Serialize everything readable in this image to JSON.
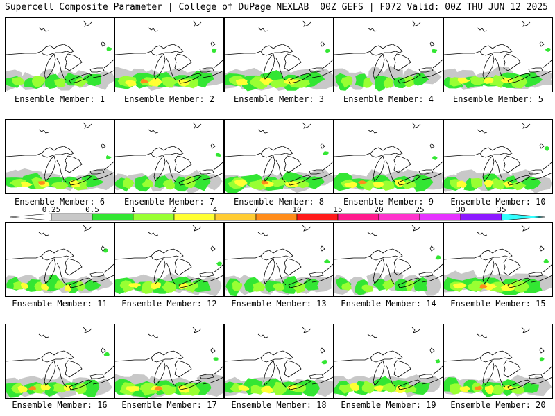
{
  "header": {
    "left": "Supercell Composite Parameter | College of DuPage NEXLAB",
    "right": "00Z GEFS | F072 Valid: 00Z THU JUN 12 2025"
  },
  "caption_prefix": "Ensemble Member: ",
  "members": [
    {
      "number": "1",
      "intensity": 2,
      "coverage": 0.55
    },
    {
      "number": "2",
      "intensity": 4,
      "coverage": 0.8
    },
    {
      "number": "3",
      "intensity": 3,
      "coverage": 0.9
    },
    {
      "number": "4",
      "intensity": 2,
      "coverage": 0.4
    },
    {
      "number": "5",
      "intensity": 3,
      "coverage": 0.75
    },
    {
      "number": "6",
      "intensity": 4,
      "coverage": 0.7
    },
    {
      "number": "7",
      "intensity": 2,
      "coverage": 0.45
    },
    {
      "number": "8",
      "intensity": 4,
      "coverage": 0.8
    },
    {
      "number": "9",
      "intensity": 4,
      "coverage": 0.7
    },
    {
      "number": "10",
      "intensity": 3,
      "coverage": 0.55
    },
    {
      "number": "11",
      "intensity": 3,
      "coverage": 0.4
    },
    {
      "number": "12",
      "intensity": 3,
      "coverage": 0.7
    },
    {
      "number": "13",
      "intensity": 2,
      "coverage": 0.5
    },
    {
      "number": "14",
      "intensity": 2,
      "coverage": 0.4
    },
    {
      "number": "15",
      "intensity": 4,
      "coverage": 0.85
    },
    {
      "number": "16",
      "intensity": 4,
      "coverage": 0.6
    },
    {
      "number": "17",
      "intensity": 4,
      "coverage": 0.85
    },
    {
      "number": "18",
      "intensity": 3,
      "coverage": 0.7
    },
    {
      "number": "19",
      "intensity": 3,
      "coverage": 0.6
    },
    {
      "number": "20",
      "intensity": 4,
      "coverage": 0.6
    }
  ],
  "legend": {
    "levels": [
      "0.25",
      "0.5",
      "1",
      "2",
      "4",
      "7",
      "10",
      "15",
      "20",
      "25",
      "30",
      "35"
    ],
    "colors": [
      "#c8c8c8",
      "#33e633",
      "#99ff33",
      "#ffff33",
      "#ffcc33",
      "#ff8c1a",
      "#ff1a1a",
      "#ff1a8c",
      "#ff33cc",
      "#e633ff",
      "#8c1aff",
      "#b366ff",
      "#33ffff"
    ]
  }
}
